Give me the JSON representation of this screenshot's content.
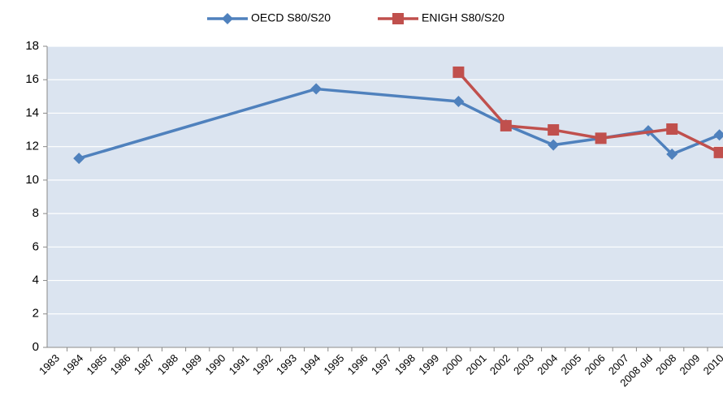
{
  "chart_data": {
    "type": "line",
    "categories": [
      "1983",
      "1984",
      "1985",
      "1986",
      "1987",
      "1988",
      "1989",
      "1990",
      "1991",
      "1992",
      "1993",
      "1994",
      "1995",
      "1996",
      "1997",
      "1998",
      "1999",
      "2000",
      "2001",
      "2002",
      "2003",
      "2004",
      "2005",
      "2006",
      "2007",
      "2008 old",
      "2008",
      "2009",
      "2010"
    ],
    "series": [
      {
        "name": "OECD S80/S20",
        "color": "#4f81bd",
        "marker": "diamond",
        "values": [
          null,
          11.3,
          null,
          null,
          null,
          null,
          null,
          null,
          null,
          null,
          null,
          15.45,
          null,
          null,
          null,
          null,
          null,
          14.7,
          null,
          13.3,
          null,
          12.1,
          null,
          12.5,
          null,
          12.95,
          11.55,
          null,
          12.7
        ]
      },
      {
        "name": "ENIGH S80/S20",
        "color": "#c0504d",
        "marker": "square",
        "values": [
          null,
          null,
          null,
          null,
          null,
          null,
          null,
          null,
          null,
          null,
          null,
          null,
          null,
          null,
          null,
          null,
          null,
          16.45,
          null,
          13.25,
          null,
          13.0,
          null,
          12.5,
          null,
          null,
          13.05,
          null,
          11.65
        ]
      }
    ],
    "ylim": [
      0,
      18
    ],
    "yticks": [
      0,
      2,
      4,
      6,
      8,
      10,
      12,
      14,
      16,
      18
    ],
    "grid": true,
    "span_gaps": true,
    "legend": "top",
    "plot_background": "#dbe4f0"
  }
}
